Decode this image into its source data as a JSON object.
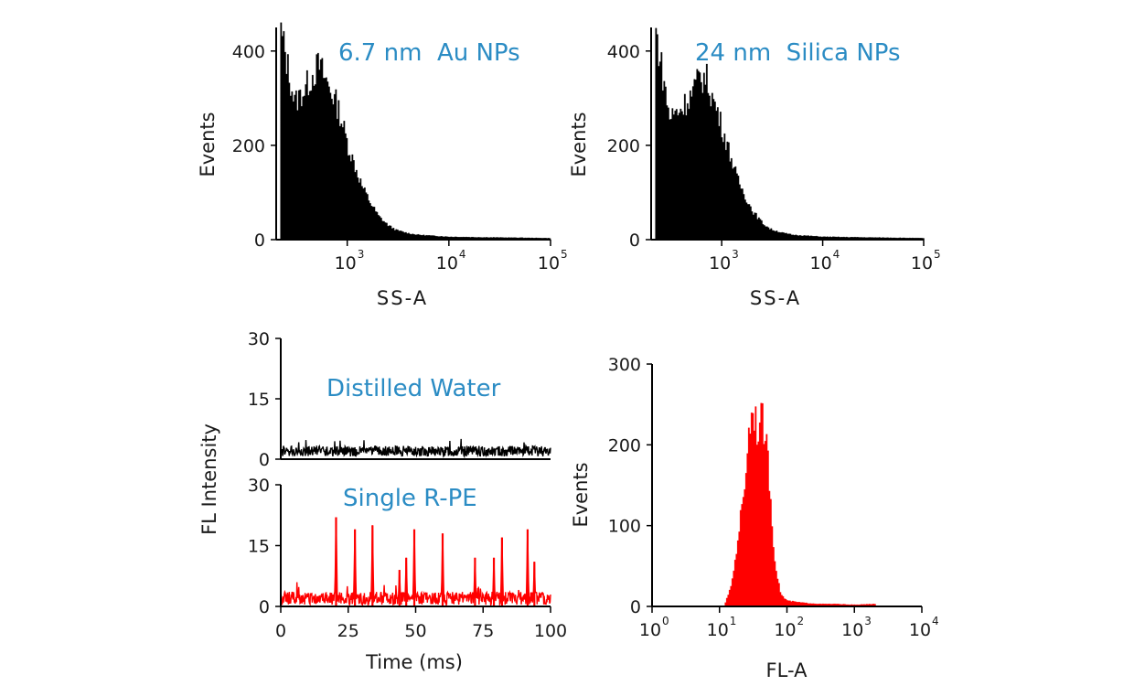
{
  "colors": {
    "black": "#000000",
    "red": "#ff0000",
    "annotation": "#2b8cc4"
  },
  "chart_data": [
    {
      "id": "au",
      "type": "bar",
      "title": "",
      "annotation": "6.7 nm  Au NPs",
      "xlabel": "SS-A",
      "ylabel": "Events",
      "xscale": "log",
      "xlim": [
        200,
        100000
      ],
      "ylim": [
        0,
        450
      ],
      "yticks": [
        {
          "v": 0,
          "label": "0"
        },
        {
          "v": 200,
          "label": "200"
        },
        {
          "v": 400,
          "label": "400"
        }
      ],
      "xticks": [
        {
          "v": 1000,
          "base": "10",
          "exp": "3"
        },
        {
          "v": 10000,
          "base": "10",
          "exp": "4"
        },
        {
          "v": 100000,
          "base": "10",
          "exp": "5"
        }
      ],
      "color": "#000000",
      "x": [
        220,
        300,
        380,
        450,
        520,
        600,
        700,
        800,
        900,
        1000,
        1200,
        1400,
        1700,
        2000,
        2500,
        3000,
        4000,
        5000,
        7000,
        10000,
        20000,
        50000,
        100000
      ],
      "y": [
        440,
        290,
        320,
        350,
        370,
        340,
        310,
        280,
        240,
        200,
        150,
        110,
        75,
        50,
        30,
        20,
        13,
        10,
        8,
        6,
        5,
        4,
        3
      ]
    },
    {
      "id": "silica",
      "type": "bar",
      "title": "",
      "annotation": "24 nm  Silica NPs",
      "xlabel": "SS-A",
      "ylabel": "Events",
      "xscale": "log",
      "xlim": [
        200,
        100000
      ],
      "ylim": [
        0,
        450
      ],
      "yticks": [
        {
          "v": 0,
          "label": "0"
        },
        {
          "v": 200,
          "label": "200"
        },
        {
          "v": 400,
          "label": "400"
        }
      ],
      "xticks": [
        {
          "v": 1000,
          "base": "10",
          "exp": "3"
        },
        {
          "v": 10000,
          "base": "10",
          "exp": "4"
        },
        {
          "v": 100000,
          "base": "10",
          "exp": "5"
        }
      ],
      "color": "#000000",
      "x": [
        220,
        300,
        400,
        500,
        600,
        700,
        800,
        900,
        1000,
        1200,
        1400,
        1700,
        2000,
        2500,
        3000,
        4000,
        5000,
        7000,
        10000,
        20000,
        50000,
        100000
      ],
      "y": [
        440,
        260,
        280,
        310,
        345,
        340,
        300,
        270,
        235,
        180,
        130,
        90,
        60,
        35,
        22,
        14,
        10,
        8,
        6,
        5,
        4,
        3
      ]
    },
    {
      "id": "water",
      "type": "line",
      "title": "",
      "annotation": "Distilled Water",
      "xlabel": "",
      "ylabel": "",
      "xlim": [
        0,
        100
      ],
      "ylim": [
        0,
        30
      ],
      "yticks": [
        {
          "v": 0,
          "label": "0"
        },
        {
          "v": 15,
          "label": "15"
        },
        {
          "v": 30,
          "label": "30"
        }
      ],
      "color": "#000000",
      "baseline": 2,
      "noise": 1.3,
      "peaks": []
    },
    {
      "id": "rpe",
      "type": "line",
      "title": "",
      "annotation": "Single R-PE",
      "xlabel": "Time (ms)",
      "ylabel": "FL Intensity",
      "xlim": [
        0,
        100
      ],
      "ylim": [
        0,
        30
      ],
      "yticks": [
        {
          "v": 0,
          "label": "0"
        },
        {
          "v": 15,
          "label": "15"
        },
        {
          "v": 30,
          "label": "30"
        }
      ],
      "xticks": [
        {
          "v": 0,
          "label": "0"
        },
        {
          "v": 25,
          "label": "25"
        },
        {
          "v": 50,
          "label": "50"
        },
        {
          "v": 75,
          "label": "75"
        },
        {
          "v": 100,
          "label": "100"
        }
      ],
      "color": "#ff0000",
      "baseline": 2,
      "noise": 1.6,
      "peaks": [
        {
          "x": 20.5,
          "y": 22
        },
        {
          "x": 27.5,
          "y": 19
        },
        {
          "x": 34,
          "y": 20
        },
        {
          "x": 44,
          "y": 9
        },
        {
          "x": 46.5,
          "y": 12
        },
        {
          "x": 49.5,
          "y": 19
        },
        {
          "x": 60,
          "y": 18
        },
        {
          "x": 72,
          "y": 12
        },
        {
          "x": 79,
          "y": 12
        },
        {
          "x": 82,
          "y": 17
        },
        {
          "x": 91.5,
          "y": 19
        },
        {
          "x": 94,
          "y": 11
        }
      ]
    },
    {
      "id": "fl",
      "type": "bar",
      "title": "",
      "annotation": "",
      "xlabel": "FL-A",
      "ylabel": "Events",
      "xscale": "log",
      "xlim": [
        1,
        10000
      ],
      "ylim": [
        0,
        300
      ],
      "yticks": [
        {
          "v": 0,
          "label": "0"
        },
        {
          "v": 100,
          "label": "100"
        },
        {
          "v": 200,
          "label": "200"
        },
        {
          "v": 300,
          "label": "300"
        }
      ],
      "xticks": [
        {
          "v": 1,
          "base": "10",
          "exp": "0"
        },
        {
          "v": 10,
          "base": "10",
          "exp": "1"
        },
        {
          "v": 100,
          "base": "10",
          "exp": "2"
        },
        {
          "v": 1000,
          "base": "10",
          "exp": "3"
        },
        {
          "v": 10000,
          "base": "10",
          "exp": "4"
        }
      ],
      "color": "#ff0000",
      "x": [
        12,
        14,
        16,
        18,
        20,
        22,
        24,
        26,
        28,
        30,
        33,
        36,
        40,
        44,
        48,
        52,
        56,
        60,
        65,
        70,
        75,
        80,
        90,
        100,
        150,
        200,
        300,
        500,
        1000,
        2000
      ],
      "y": [
        5,
        20,
        45,
        80,
        110,
        130,
        170,
        210,
        230,
        245,
        240,
        215,
        235,
        225,
        200,
        175,
        135,
        90,
        60,
        40,
        25,
        15,
        10,
        7,
        5,
        4,
        3,
        3,
        2,
        3
      ]
    }
  ]
}
